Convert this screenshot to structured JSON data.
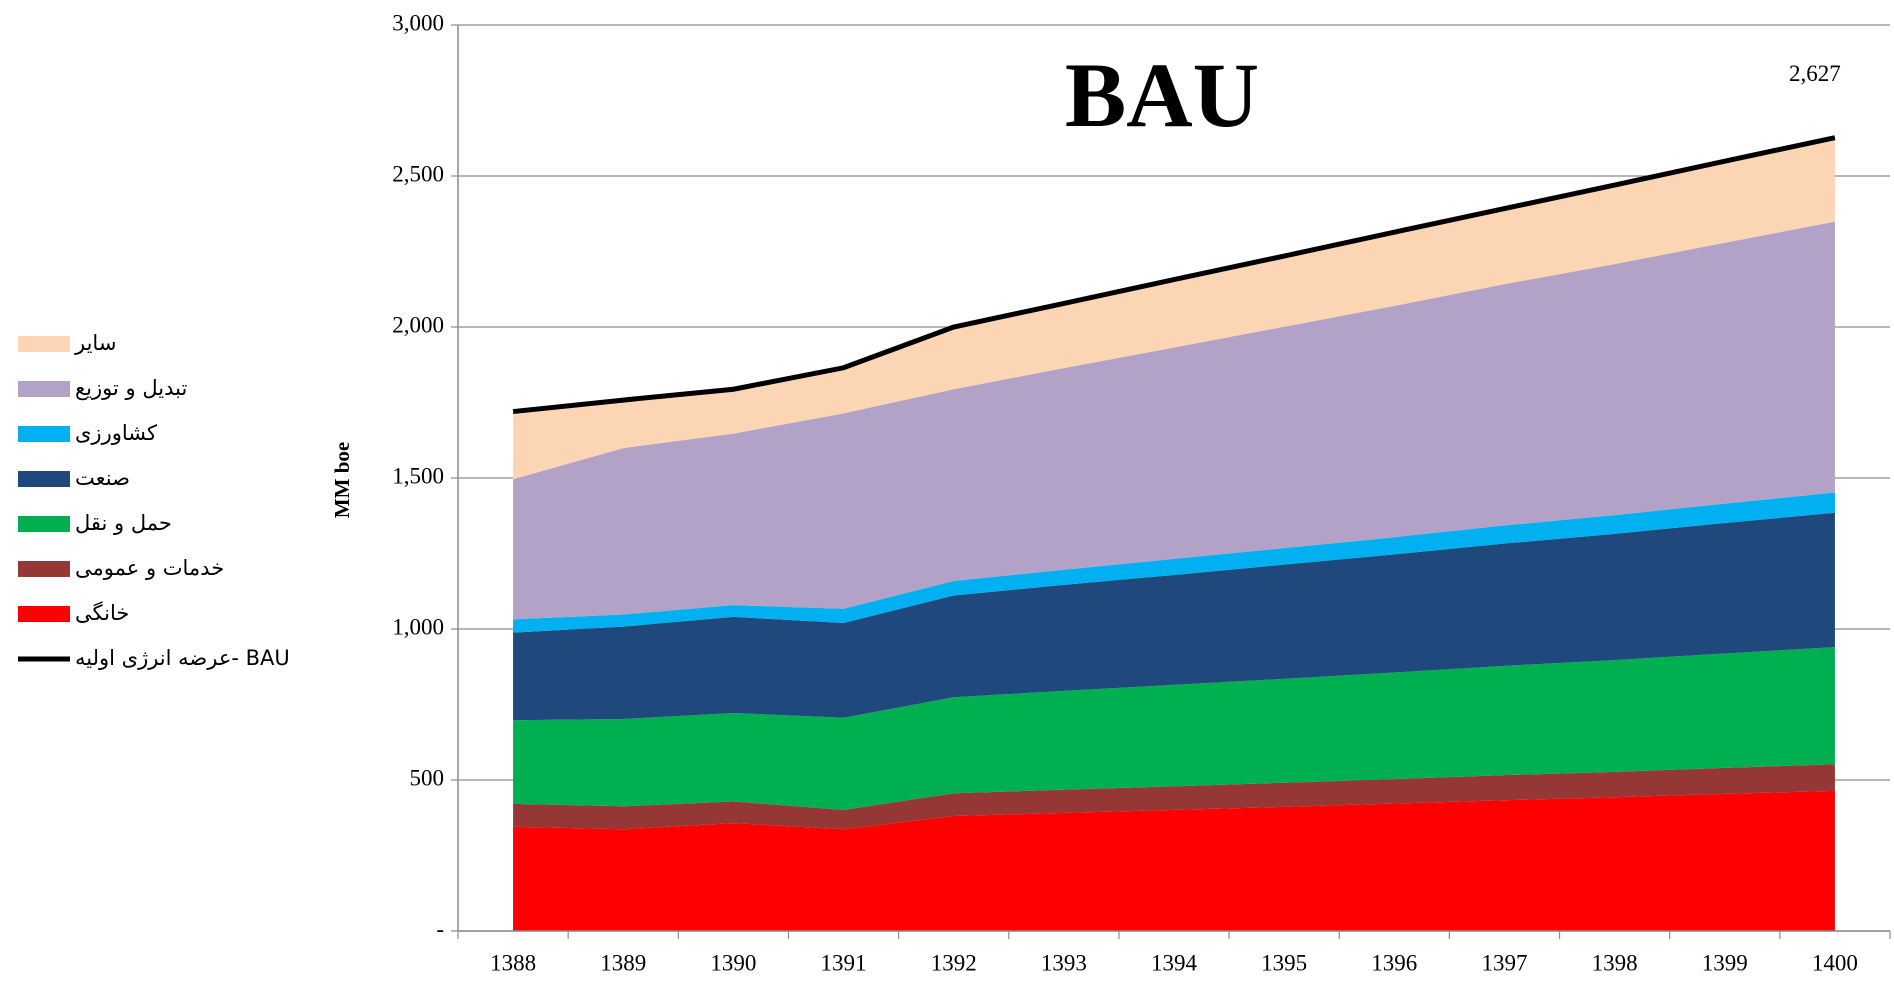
{
  "chart_data": {
    "type": "area",
    "stacked": true,
    "title": "BAU",
    "y_label": "MM boe",
    "categories": [
      "1388",
      "1389",
      "1390",
      "1391",
      "1392",
      "1393",
      "1394",
      "1395",
      "1396",
      "1397",
      "1398",
      "1399",
      "1400"
    ],
    "ylim": [
      0,
      3000
    ],
    "yticks": [
      {
        "value": 0,
        "label": "-"
      },
      500,
      {
        "value": 1000,
        "label": "1,000"
      },
      {
        "value": 1500,
        "label": "1,500"
      },
      {
        "value": 2000,
        "label": "2,000"
      },
      {
        "value": 2500,
        "label": "2,500"
      },
      {
        "value": 3000,
        "label": "3,000"
      }
    ],
    "grid": true,
    "legend": "left",
    "series": [
      {
        "name": "خانگی",
        "color": "#ff0000",
        "values": [
          345,
          337,
          357,
          337,
          381,
          391,
          401,
          411,
          422,
          433,
          443,
          454,
          464
        ]
      },
      {
        "name": "خدمات و عمومی",
        "color": "#953735",
        "values": [
          76,
          76,
          72,
          64,
          75,
          77,
          78,
          80,
          81,
          83,
          84,
          86,
          88
        ]
      },
      {
        "name": "حمل و نقل",
        "color": "#00b050",
        "values": [
          277,
          289,
          293,
          305,
          318,
          327,
          336,
          344,
          353,
          362,
          370,
          379,
          388
        ]
      },
      {
        "name": "صنعت",
        "color": "#1f497d",
        "values": [
          290,
          306,
          318,
          314,
          337,
          351,
          364,
          378,
          391,
          405,
          418,
          432,
          445
        ]
      },
      {
        "name": "کشاورزی",
        "color": "#00b0f0",
        "values": [
          44,
          40,
          39,
          47,
          48,
          50,
          53,
          55,
          57,
          60,
          62,
          64,
          67
        ]
      },
      {
        "name": "تبدیل و توزیع",
        "color": "#b3a2c7",
        "values": [
          464,
          551,
          568,
          647,
          635,
          668,
          700,
          733,
          766,
          799,
          831,
          864,
          897
        ]
      },
      {
        "name": "سایر",
        "color": "#fcd5b5",
        "values": [
          224,
          159,
          147,
          151,
          206,
          215,
          224,
          233,
          242,
          251,
          260,
          269,
          278
        ]
      },
      {
        "name": "عرضه انرژی اولیه- BAU",
        "type": "line",
        "color": "#000000",
        "values": [
          1720,
          1758,
          1794,
          1865,
          2000,
          2078,
          2157,
          2235,
          2314,
          2392,
          2470,
          2549,
          2627
        ],
        "value_labels": [
          null,
          null,
          null,
          null,
          null,
          null,
          null,
          null,
          null,
          null,
          null,
          null,
          "2,627"
        ]
      }
    ]
  }
}
